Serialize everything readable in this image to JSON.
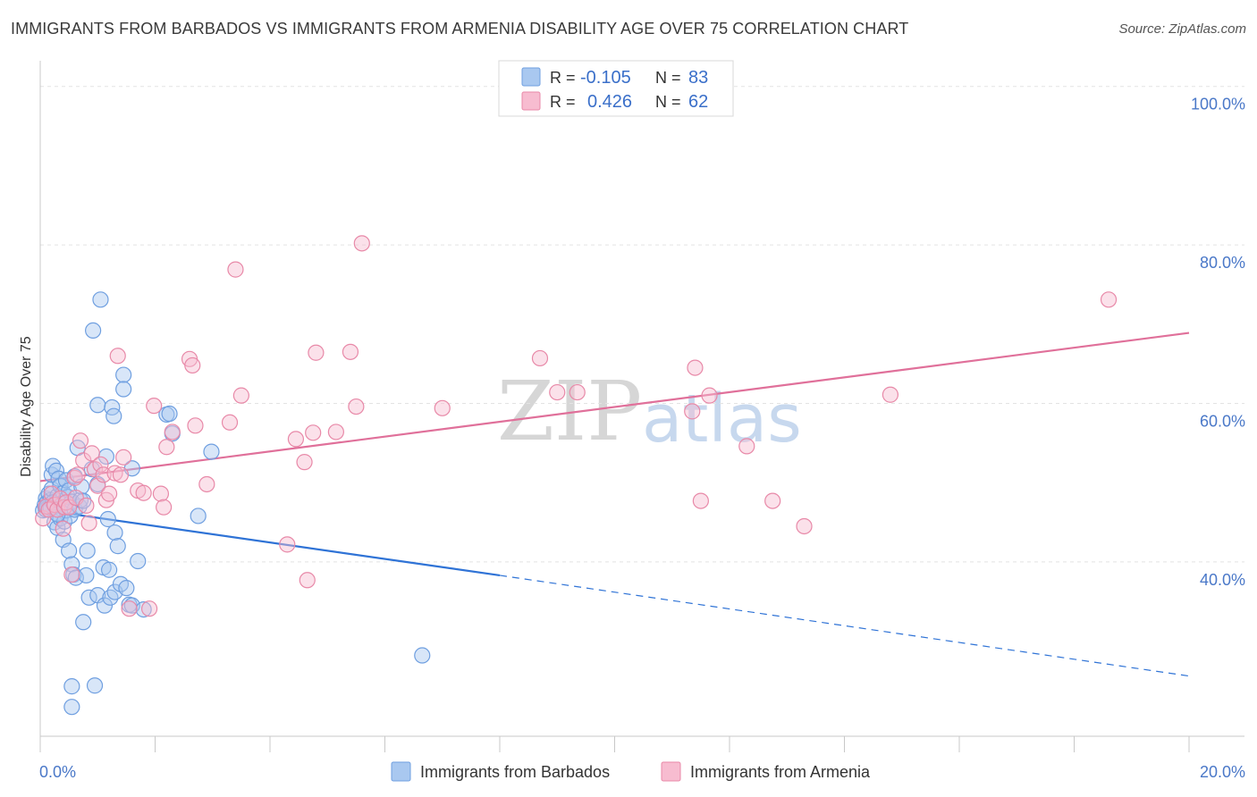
{
  "header": {
    "title": "IMMIGRANTS FROM BARBADOS VS IMMIGRANTS FROM ARMENIA DISABILITY AGE OVER 75 CORRELATION CHART",
    "source": "Source: ZipAtlas.com"
  },
  "watermark": {
    "zip": "ZIP",
    "atlas": "atlas"
  },
  "legend_box": {
    "rows": [
      {
        "r_label": "R = ",
        "r_value": "-0.105",
        "n_label": "N = ",
        "n_value": "83"
      },
      {
        "r_label": "R = ",
        "r_value": "0.426",
        "n_label": "N = ",
        "n_value": "62"
      }
    ]
  },
  "bottom_legend": [
    {
      "label": "Immigrants from Barbados"
    },
    {
      "label": "Immigrants from Armenia"
    }
  ],
  "colors": {
    "barbados_fill": "#a9c8f0",
    "barbados_stroke": "#6f9fe0",
    "barbados_line": "#2f73d6",
    "armenia_fill": "#f7bcd0",
    "armenia_stroke": "#e889a8",
    "armenia_line": "#e0709a",
    "tick_text": "#4a78c8",
    "grid": "#e3e3e3"
  },
  "chart_data": {
    "type": "scatter",
    "title": "IMMIGRANTS FROM BARBADOS VS IMMIGRANTS FROM ARMENIA DISABILITY AGE OVER 75 CORRELATION CHART",
    "xlabel": "",
    "ylabel": "Disability Age Over 75",
    "xlim": [
      0,
      20
    ],
    "ylim": [
      18,
      102
    ],
    "x_tick_labels": [
      "0.0%",
      "20.0%"
    ],
    "y_ticks": [
      40,
      60,
      80,
      100
    ],
    "y_tick_labels": [
      "40.0%",
      "60.0%",
      "80.0%",
      "100.0%"
    ],
    "grid": true,
    "series": [
      {
        "name": "Immigrants from Barbados",
        "R": -0.105,
        "N": 83,
        "trend": {
          "x_start": 0.0,
          "y_start": 46.6,
          "x_solid_end": 8.0,
          "y_solid_end": 38.3,
          "x_end": 20.0,
          "y_end": 25.6
        },
        "points": [
          [
            0.05,
            46.5
          ],
          [
            0.08,
            47.2
          ],
          [
            0.1,
            48.0
          ],
          [
            0.12,
            47.5
          ],
          [
            0.15,
            48.6
          ],
          [
            0.15,
            46.9
          ],
          [
            0.18,
            47.8
          ],
          [
            0.2,
            49.2
          ],
          [
            0.2,
            51.0
          ],
          [
            0.22,
            52.1
          ],
          [
            0.25,
            47.0
          ],
          [
            0.25,
            45.0
          ],
          [
            0.28,
            51.5
          ],
          [
            0.3,
            48.3
          ],
          [
            0.3,
            44.3
          ],
          [
            0.32,
            50.5
          ],
          [
            0.35,
            49.6
          ],
          [
            0.35,
            45.5
          ],
          [
            0.38,
            47.3
          ],
          [
            0.4,
            48.7
          ],
          [
            0.4,
            42.8
          ],
          [
            0.42,
            45.1
          ],
          [
            0.45,
            50.3
          ],
          [
            0.45,
            46.5
          ],
          [
            0.48,
            48.2
          ],
          [
            0.5,
            49.0
          ],
          [
            0.5,
            41.4
          ],
          [
            0.52,
            45.8
          ],
          [
            0.55,
            47.6
          ],
          [
            0.55,
            39.7
          ],
          [
            0.58,
            38.4
          ],
          [
            0.6,
            50.8
          ],
          [
            0.6,
            46.6
          ],
          [
            0.62,
            38.0
          ],
          [
            0.65,
            54.4
          ],
          [
            0.68,
            47.0
          ],
          [
            0.7,
            47.8
          ],
          [
            0.72,
            49.5
          ],
          [
            0.75,
            47.7
          ],
          [
            0.75,
            32.4
          ],
          [
            0.8,
            38.3
          ],
          [
            0.82,
            41.4
          ],
          [
            0.85,
            35.5
          ],
          [
            0.9,
            51.7
          ],
          [
            0.92,
            69.2
          ],
          [
            0.95,
            24.4
          ],
          [
            1.0,
            59.8
          ],
          [
            1.0,
            49.8
          ],
          [
            1.0,
            35.8
          ],
          [
            1.05,
            73.1
          ],
          [
            1.1,
            39.3
          ],
          [
            1.12,
            34.5
          ],
          [
            1.15,
            53.3
          ],
          [
            1.18,
            45.4
          ],
          [
            1.2,
            39.0
          ],
          [
            1.22,
            35.5
          ],
          [
            1.25,
            59.5
          ],
          [
            1.28,
            58.4
          ],
          [
            1.3,
            43.7
          ],
          [
            1.3,
            36.2
          ],
          [
            1.35,
            42.0
          ],
          [
            1.4,
            37.2
          ],
          [
            1.45,
            63.6
          ],
          [
            1.45,
            61.8
          ],
          [
            1.5,
            36.7
          ],
          [
            1.55,
            34.6
          ],
          [
            1.6,
            51.8
          ],
          [
            1.6,
            34.5
          ],
          [
            1.7,
            40.1
          ],
          [
            1.8,
            34.0
          ],
          [
            2.2,
            58.6
          ],
          [
            2.25,
            58.7
          ],
          [
            2.3,
            56.2
          ],
          [
            2.75,
            45.8
          ],
          [
            2.98,
            53.9
          ],
          [
            6.65,
            28.2
          ],
          [
            0.55,
            24.3
          ],
          [
            0.55,
            21.7
          ],
          [
            0.1,
            46.6
          ],
          [
            0.12,
            47.0
          ],
          [
            0.18,
            46.8
          ],
          [
            0.22,
            47.5
          ],
          [
            0.3,
            46.0
          ]
        ]
      },
      {
        "name": "Immigrants from Armenia",
        "R": 0.426,
        "N": 62,
        "trend": {
          "x_start": 0.0,
          "y_start": 50.2,
          "x_end": 20.0,
          "y_end": 68.9
        },
        "points": [
          [
            0.05,
            45.5
          ],
          [
            0.1,
            47.0
          ],
          [
            0.15,
            46.6
          ],
          [
            0.2,
            48.6
          ],
          [
            0.25,
            47.2
          ],
          [
            0.3,
            46.6
          ],
          [
            0.35,
            48.0
          ],
          [
            0.4,
            44.2
          ],
          [
            0.42,
            46.9
          ],
          [
            0.45,
            47.5
          ],
          [
            0.5,
            46.9
          ],
          [
            0.55,
            38.4
          ],
          [
            0.6,
            50.6
          ],
          [
            0.62,
            48.1
          ],
          [
            0.65,
            51.0
          ],
          [
            0.7,
            55.3
          ],
          [
            0.75,
            52.8
          ],
          [
            0.8,
            47.1
          ],
          [
            0.85,
            44.9
          ],
          [
            0.9,
            53.7
          ],
          [
            0.95,
            51.7
          ],
          [
            1.0,
            49.6
          ],
          [
            1.05,
            52.3
          ],
          [
            1.1,
            51.0
          ],
          [
            1.15,
            47.8
          ],
          [
            1.2,
            48.6
          ],
          [
            1.3,
            51.2
          ],
          [
            1.35,
            66.0
          ],
          [
            1.4,
            51.0
          ],
          [
            1.45,
            53.2
          ],
          [
            1.55,
            34.1
          ],
          [
            1.7,
            49.0
          ],
          [
            1.8,
            48.7
          ],
          [
            1.9,
            34.1
          ],
          [
            1.98,
            59.7
          ],
          [
            2.1,
            48.6
          ],
          [
            2.15,
            46.9
          ],
          [
            2.2,
            54.5
          ],
          [
            2.3,
            56.4
          ],
          [
            2.6,
            65.6
          ],
          [
            2.65,
            64.8
          ],
          [
            2.7,
            57.2
          ],
          [
            2.9,
            49.8
          ],
          [
            3.3,
            57.6
          ],
          [
            3.4,
            76.9
          ],
          [
            3.5,
            61.0
          ],
          [
            4.3,
            42.2
          ],
          [
            4.45,
            55.5
          ],
          [
            4.6,
            52.6
          ],
          [
            4.65,
            37.7
          ],
          [
            4.75,
            56.3
          ],
          [
            4.8,
            66.4
          ],
          [
            5.15,
            56.4
          ],
          [
            5.4,
            66.5
          ],
          [
            5.5,
            59.6
          ],
          [
            5.6,
            80.2
          ],
          [
            7.0,
            59.4
          ],
          [
            8.7,
            65.7
          ],
          [
            9.0,
            61.4
          ],
          [
            9.35,
            61.4
          ],
          [
            11.4,
            64.5
          ],
          [
            11.5,
            47.7
          ]
        ]
      }
    ],
    "extra_armenia_points": [
      [
        11.35,
        59.0
      ],
      [
        11.65,
        61.0
      ],
      [
        12.3,
        54.6
      ],
      [
        12.75,
        47.7
      ],
      [
        13.3,
        44.5
      ],
      [
        14.8,
        61.1
      ],
      [
        18.6,
        73.1
      ]
    ]
  }
}
